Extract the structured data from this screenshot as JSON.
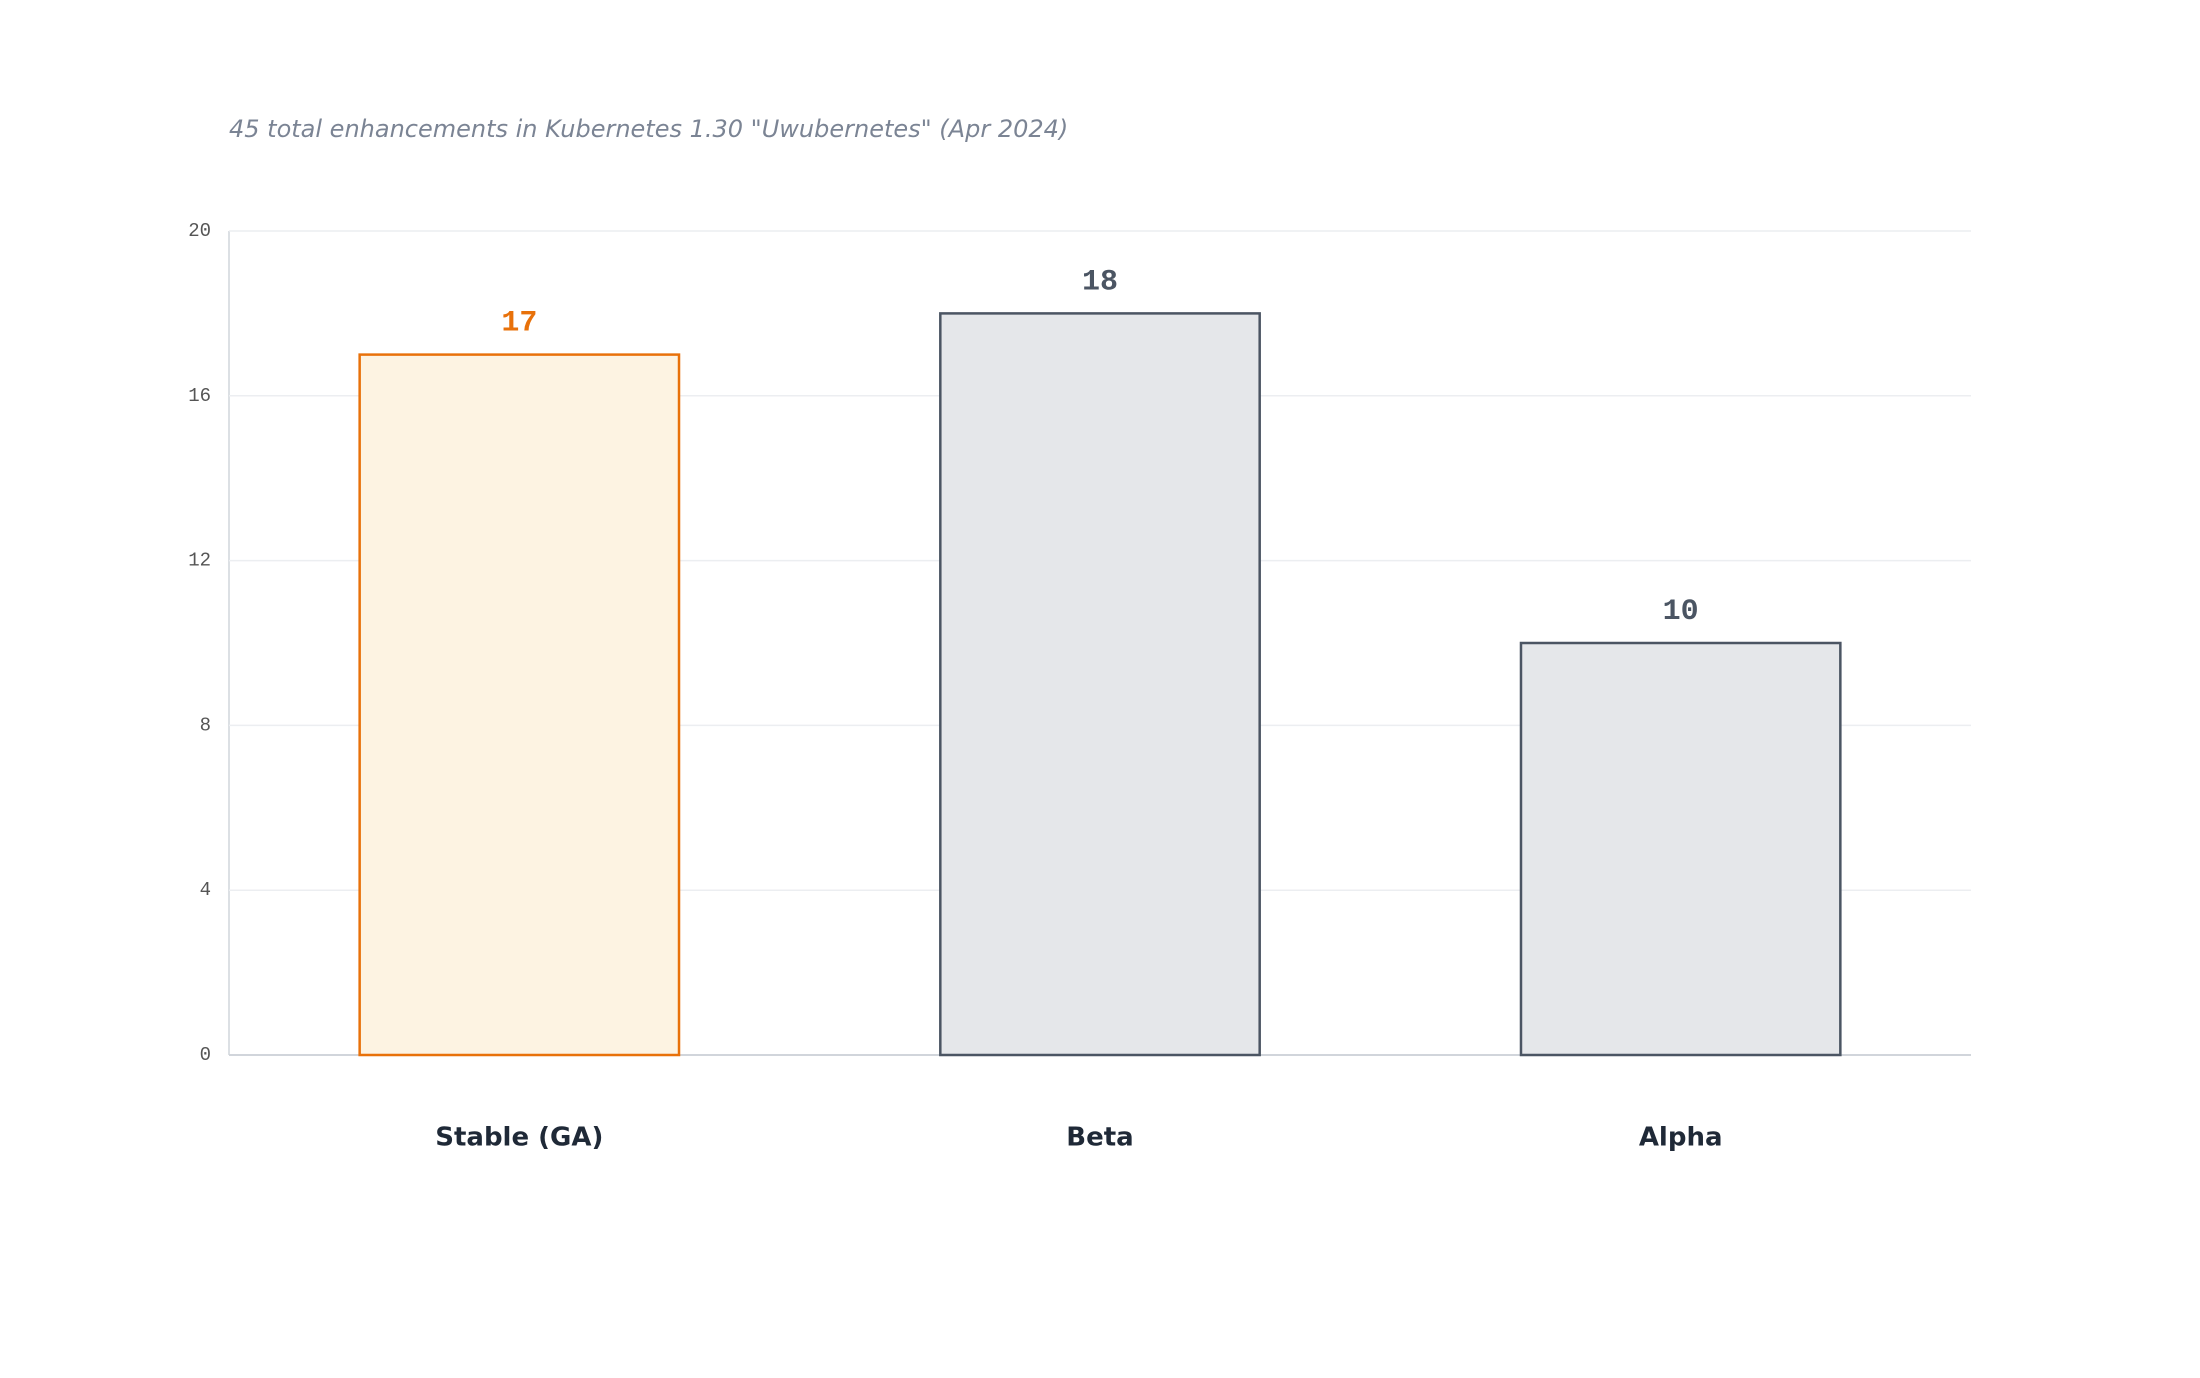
{
  "chart_data": {
    "type": "bar",
    "subtitle": "45 total enhancements in Kubernetes 1.30 \"Uwubernetes\" (Apr 2024)",
    "categories": [
      "Stable (GA)",
      "Beta",
      "Alpha"
    ],
    "values": [
      17,
      18,
      10
    ],
    "colors": [
      "#e8710a",
      "#4b5563",
      "#4b5563"
    ],
    "fill_colors": [
      "#fdf3e2",
      "#e5e7ea",
      "#e5e7ea"
    ],
    "ylim": [
      0,
      20
    ],
    "yticks": [
      0,
      4,
      8,
      12,
      16,
      20
    ],
    "grid": true
  }
}
